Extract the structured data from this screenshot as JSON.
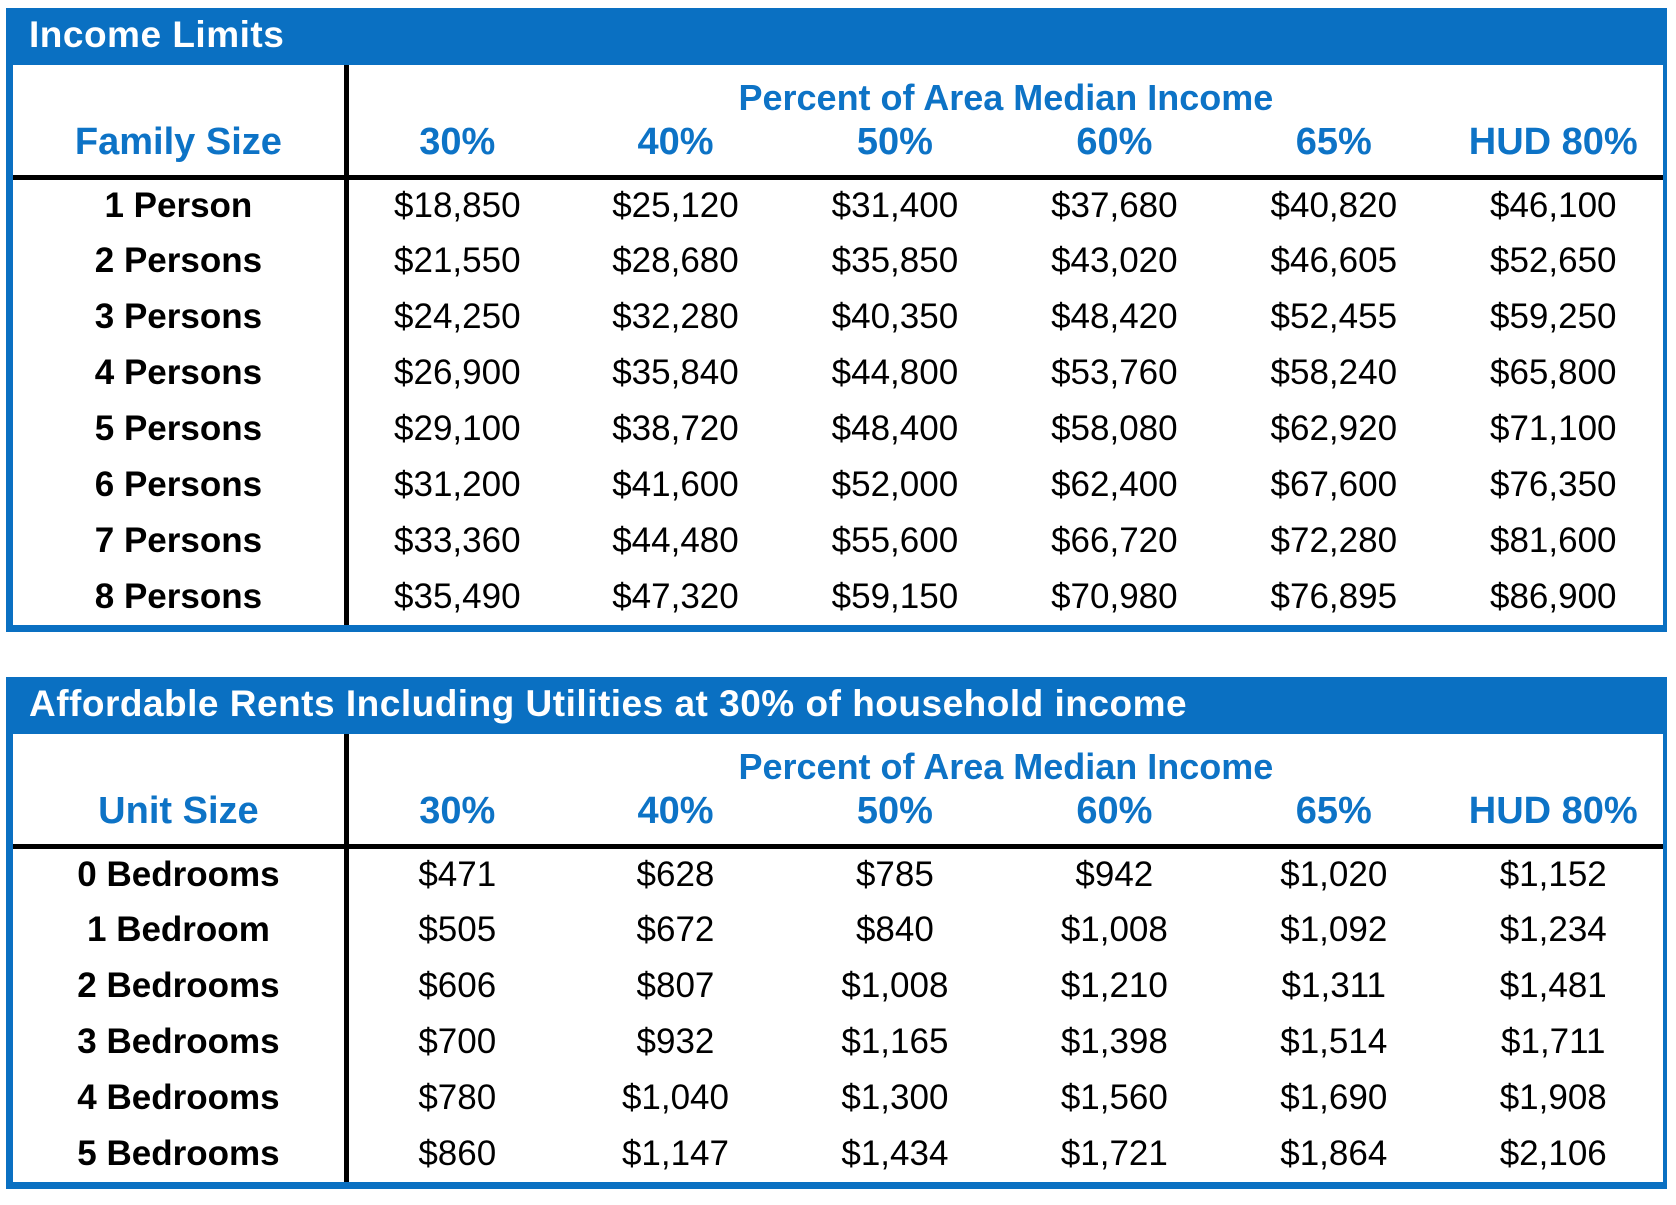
{
  "colors": {
    "blue_fill": "#0a70c2",
    "blue_text": "#0d73c6",
    "text_black": "#000000"
  },
  "income_table": {
    "title": "Income Limits",
    "group_header": "Percent of Area Median Income",
    "row_header_label": "Family Size",
    "columns": [
      "30%",
      "40%",
      "50%",
      "60%",
      "65%",
      "HUD 80%"
    ],
    "rows": [
      {
        "label": "1 Person",
        "values": [
          "$18,850",
          "$25,120",
          "$31,400",
          "$37,680",
          "$40,820",
          "$46,100"
        ]
      },
      {
        "label": "2 Persons",
        "values": [
          "$21,550",
          "$28,680",
          "$35,850",
          "$43,020",
          "$46,605",
          "$52,650"
        ]
      },
      {
        "label": "3 Persons",
        "values": [
          "$24,250",
          "$32,280",
          "$40,350",
          "$48,420",
          "$52,455",
          "$59,250"
        ]
      },
      {
        "label": "4 Persons",
        "values": [
          "$26,900",
          "$35,840",
          "$44,800",
          "$53,760",
          "$58,240",
          "$65,800"
        ]
      },
      {
        "label": "5 Persons",
        "values": [
          "$29,100",
          "$38,720",
          "$48,400",
          "$58,080",
          "$62,920",
          "$71,100"
        ]
      },
      {
        "label": "6 Persons",
        "values": [
          "$31,200",
          "$41,600",
          "$52,000",
          "$62,400",
          "$67,600",
          "$76,350"
        ]
      },
      {
        "label": "7 Persons",
        "values": [
          "$33,360",
          "$44,480",
          "$55,600",
          "$66,720",
          "$72,280",
          "$81,600"
        ]
      },
      {
        "label": "8 Persons",
        "values": [
          "$35,490",
          "$47,320",
          "$59,150",
          "$70,980",
          "$76,895",
          "$86,900"
        ]
      }
    ]
  },
  "rents_table": {
    "title": "Affordable Rents Including Utilities at 30% of household income",
    "group_header": "Percent of Area Median Income",
    "row_header_label": "Unit Size",
    "columns": [
      "30%",
      "40%",
      "50%",
      "60%",
      "65%",
      "HUD 80%"
    ],
    "rows": [
      {
        "label": "0 Bedrooms",
        "values": [
          "$471",
          "$628",
          "$785",
          "$942",
          "$1,020",
          "$1,152"
        ]
      },
      {
        "label": "1 Bedroom",
        "values": [
          "$505",
          "$672",
          "$840",
          "$1,008",
          "$1,092",
          "$1,234"
        ]
      },
      {
        "label": "2 Bedrooms",
        "values": [
          "$606",
          "$807",
          "$1,008",
          "$1,210",
          "$1,311",
          "$1,481"
        ]
      },
      {
        "label": "3 Bedrooms",
        "values": [
          "$700",
          "$932",
          "$1,165",
          "$1,398",
          "$1,514",
          "$1,711"
        ]
      },
      {
        "label": "4 Bedrooms",
        "values": [
          "$780",
          "$1,040",
          "$1,300",
          "$1,560",
          "$1,690",
          "$1,908"
        ]
      },
      {
        "label": "5 Bedrooms",
        "values": [
          "$860",
          "$1,147",
          "$1,434",
          "$1,721",
          "$1,864",
          "$2,106"
        ]
      }
    ]
  }
}
